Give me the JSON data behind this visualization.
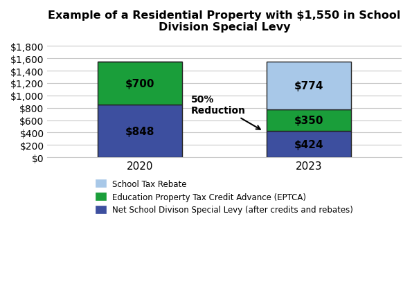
{
  "title": "Example of a Residential Property with $1,550 in School\nDivision Special Levy",
  "title_fontsize": 11.5,
  "categories": [
    "2020",
    "2023"
  ],
  "net_levy": [
    848,
    424
  ],
  "eptca": [
    700,
    350
  ],
  "rebate": [
    0,
    774
  ],
  "net_levy_color": "#3d4f9f",
  "eptca_color": "#1a9e3a",
  "rebate_color": "#a8c8e8",
  "net_levy_label": "Net School Divison Special Levy (after credits and rebates)",
  "eptca_label": "Education Property Tax Credit Advance (EPTCA)",
  "rebate_label": "School Tax Rebate",
  "yticks": [
    0,
    200,
    400,
    600,
    800,
    1000,
    1200,
    1400,
    1600,
    1800
  ],
  "ylim": [
    0,
    1900
  ],
  "bar_width": 0.5,
  "annotation_text": "50%\nReduction",
  "background_color": "#ffffff",
  "grid_color": "#c8c8c8",
  "value_label_color_dark": "#000000",
  "value_label_fontsize": 11,
  "bar_edge_color": "#222222",
  "bar_edge_width": 1.0,
  "tick_fontsize": 10,
  "xtick_fontsize": 11,
  "legend_fontsize": 8.5
}
